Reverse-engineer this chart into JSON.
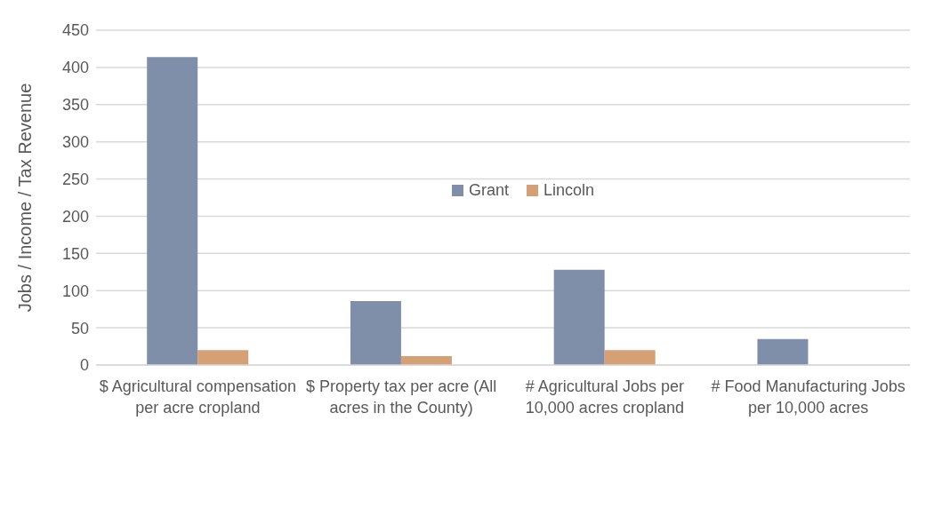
{
  "chart_data": {
    "type": "bar",
    "ylabel": "Jobs / Income / Tax Revenue",
    "categories": [
      "$ Agricultural compensation per acre cropland",
      "$ Property tax per acre (All acres in the County)",
      "# Agricultural Jobs per 10,000 acres cropland",
      "# Food Manufacturing Jobs per 10,000 acres"
    ],
    "series": [
      {
        "name": "Grant",
        "color": "#7f8fa9",
        "values": [
          414,
          86,
          128,
          35
        ]
      },
      {
        "name": "Lincoln",
        "color": "#d5a073",
        "values": [
          20,
          12,
          20,
          0
        ]
      }
    ],
    "ylim": [
      0,
      450
    ],
    "yticks": [
      0,
      50,
      100,
      150,
      200,
      250,
      300,
      350,
      400,
      450
    ],
    "grid": "y",
    "legend": "center"
  }
}
